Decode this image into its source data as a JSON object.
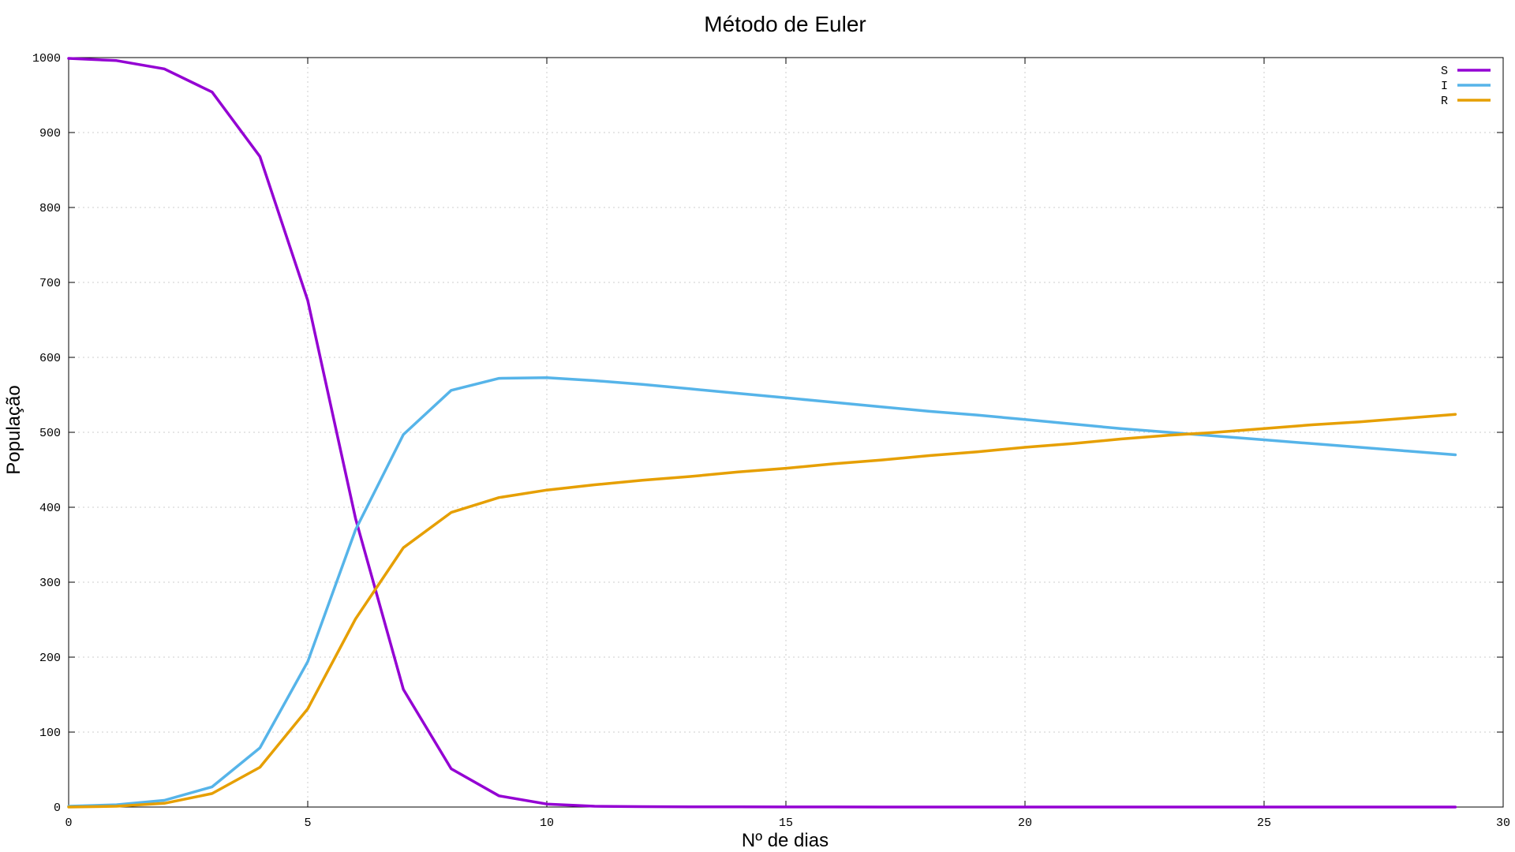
{
  "chart_data": {
    "type": "line",
    "title": "Método de Euler",
    "xlabel": "Nº de dias",
    "ylabel": "População",
    "xlim": [
      0,
      30
    ],
    "ylim": [
      0,
      1000
    ],
    "x_ticks": [
      0,
      5,
      10,
      15,
      20,
      25,
      30
    ],
    "y_ticks": [
      0,
      100,
      200,
      300,
      400,
      500,
      600,
      700,
      800,
      900,
      1000
    ],
    "grid": true,
    "legend_position": "top-right",
    "x": [
      0,
      1,
      2,
      3,
      4,
      5,
      6,
      7,
      8,
      9,
      10,
      11,
      12,
      13,
      14,
      15,
      16,
      17,
      18,
      19,
      20,
      21,
      22,
      23,
      24,
      25,
      26,
      27,
      28,
      29
    ],
    "series": [
      {
        "name": "S",
        "color": "#9400d3",
        "values": [
          999,
          996,
          985,
          954,
          868,
          676,
          385,
          157,
          51,
          15,
          4,
          1,
          0.5,
          0.3,
          0.2,
          0.1,
          0.1,
          0,
          0,
          0,
          0,
          0,
          0,
          0,
          0,
          0,
          0,
          0,
          0,
          0
        ]
      },
      {
        "name": "I",
        "color": "#56b4e9",
        "values": [
          1,
          3,
          9,
          27,
          79,
          194,
          370,
          497,
          556,
          572,
          573,
          569,
          564,
          558,
          552,
          546,
          540,
          534,
          528,
          523,
          517,
          511,
          505,
          500,
          495,
          490,
          485,
          480,
          475,
          470
        ]
      },
      {
        "name": "R",
        "color": "#e69f00",
        "values": [
          0,
          1,
          5,
          18,
          53,
          131,
          251,
          346,
          393,
          413,
          423,
          430,
          436,
          441,
          447,
          452,
          458,
          463,
          469,
          474,
          480,
          485,
          491,
          496,
          500,
          505,
          510,
          514,
          519,
          524
        ]
      }
    ]
  }
}
